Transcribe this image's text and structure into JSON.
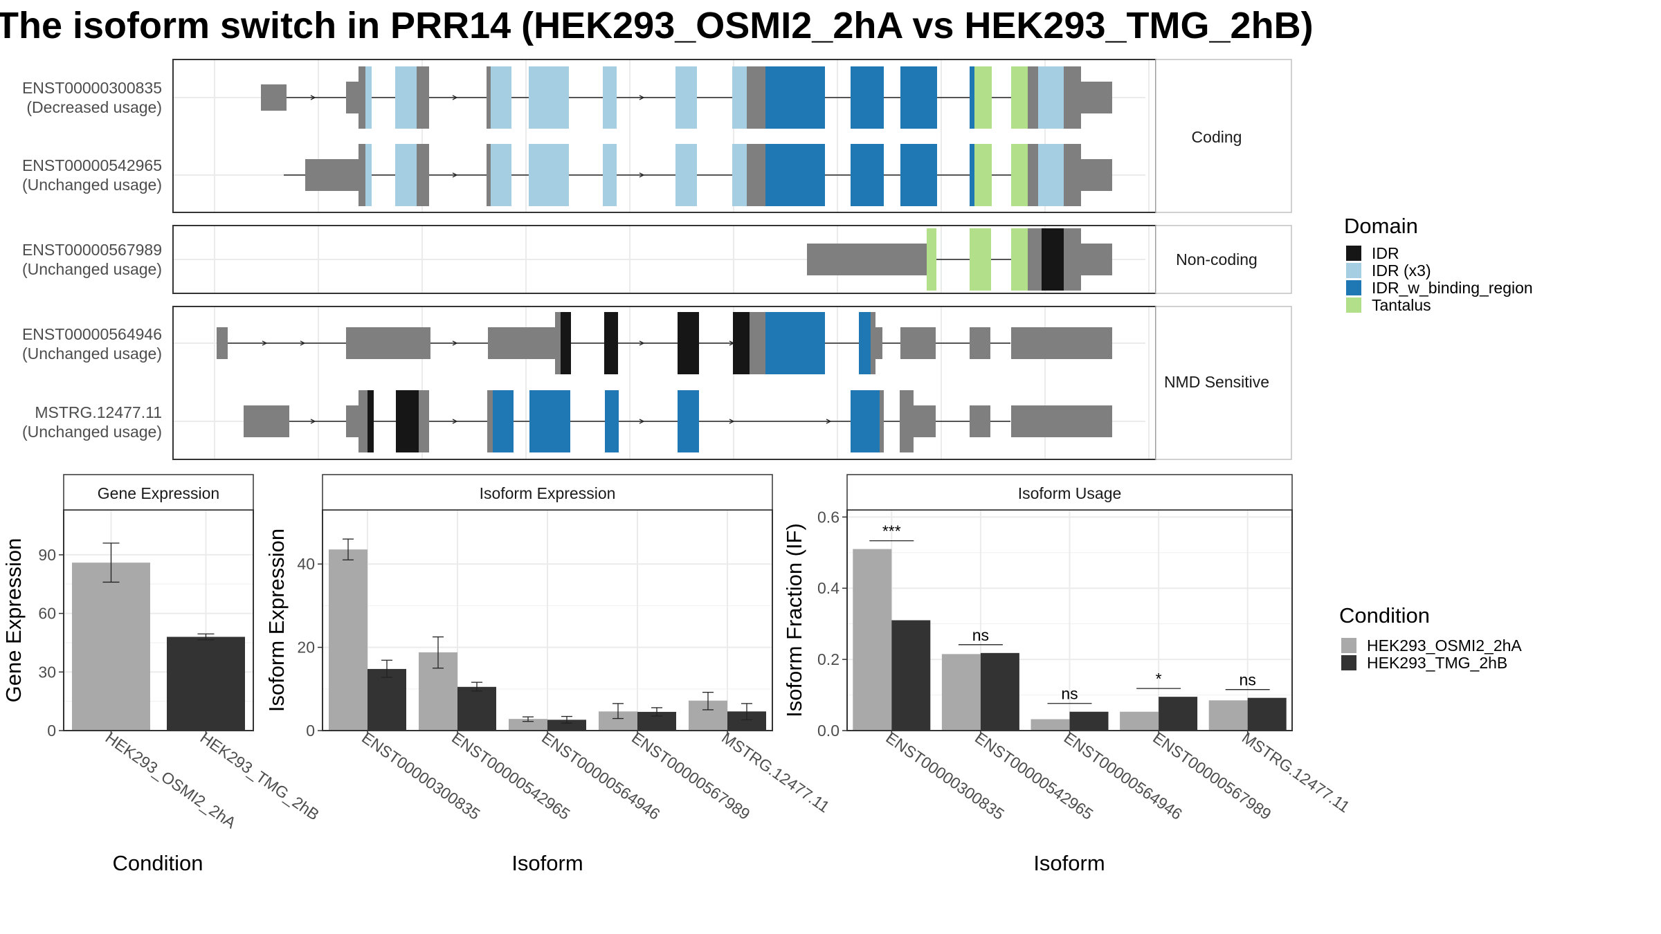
{
  "title": "The isoform switch in PRR14 (HEK293_OSMI2_2hA vs HEK293_TMG_2hB)",
  "colors": {
    "exon": "#7f7f7f",
    "IDR": "#161616",
    "IDR (x3)": "#a6cee3",
    "IDR_w_binding_region": "#1f78b4",
    "Tantalus": "#b2df8a",
    "cond1": "#a9a9a9",
    "cond2": "#333333"
  },
  "structure": {
    "groups": [
      {
        "label": "Coding",
        "transcripts": [
          {
            "id": "ENST00000300835",
            "usage": "(Decreased usage)"
          },
          {
            "id": "ENST00000542965",
            "usage": "(Unchanged usage)"
          }
        ]
      },
      {
        "label": "Non-coding",
        "transcripts": [
          {
            "id": "ENST00000567989",
            "usage": "(Unchanged usage)"
          }
        ]
      },
      {
        "label": "NMD Sensitive",
        "transcripts": [
          {
            "id": "ENST00000564946",
            "usage": "(Unchanged usage)"
          },
          {
            "id": "MSTRG.12477.11",
            "usage": "(Unchanged usage)"
          }
        ]
      }
    ]
  },
  "domain_legend": {
    "title": "Domain",
    "items": [
      "IDR",
      "IDR (x3)",
      "IDR_w_binding_region",
      "Tantalus"
    ]
  },
  "condition_legend": {
    "title": "Condition",
    "items": [
      "HEK293_OSMI2_2hA",
      "HEK293_TMG_2hB"
    ]
  },
  "chart_data": [
    {
      "type": "bar",
      "title": "Gene Expression",
      "xlabel": "Condition",
      "ylabel": "Gene Expression",
      "categories": [
        "HEK293_OSMI2_2hA",
        "HEK293_TMG_2hB"
      ],
      "values": [
        86,
        48
      ],
      "errors": [
        [
          76,
          96
        ],
        [
          46.5,
          49.5
        ]
      ],
      "yticks": [
        0,
        30,
        60,
        90
      ],
      "ylim": [
        0,
        113
      ]
    },
    {
      "type": "bar",
      "title": "Isoform Expression",
      "xlabel": "Isoform",
      "ylabel": "Isoform Expression",
      "categories": [
        "ENST00000300835",
        "ENST00000542965",
        "ENST00000564946",
        "ENST00000567989",
        "MSTRG.12477.11"
      ],
      "series": [
        {
          "name": "HEK293_OSMI2_2hA",
          "values": [
            43.5,
            18.8,
            2.8,
            4.6,
            7.2
          ],
          "errors": [
            [
              41,
              46
            ],
            [
              15,
              22.5
            ],
            [
              2.2,
              3.3
            ],
            [
              2.9,
              6.5
            ],
            [
              5,
              9.2
            ]
          ]
        },
        {
          "name": "HEK293_TMG_2hB",
          "values": [
            14.8,
            10.5,
            2.6,
            4.5,
            4.6
          ],
          "errors": [
            [
              12.8,
              16.9
            ],
            [
              9.5,
              11.6
            ],
            [
              1.8,
              3.4
            ],
            [
              3.5,
              5.5
            ],
            [
              2.6,
              6.5
            ]
          ]
        }
      ],
      "yticks": [
        0,
        20,
        40
      ],
      "ylim": [
        0,
        53
      ]
    },
    {
      "type": "bar",
      "title": "Isoform Usage",
      "xlabel": "Isoform",
      "ylabel": "Isoform Fraction (IF)",
      "categories": [
        "ENST00000300835",
        "ENST00000542965",
        "ENST00000564946",
        "ENST00000567989",
        "MSTRG.12477.11"
      ],
      "series": [
        {
          "name": "HEK293_OSMI2_2hA",
          "values": [
            0.51,
            0.215,
            0.032,
            0.053,
            0.085
          ]
        },
        {
          "name": "HEK293_TMG_2hB",
          "values": [
            0.31,
            0.218,
            0.053,
            0.095,
            0.092
          ]
        }
      ],
      "significance": [
        "***",
        "ns",
        "ns",
        "*",
        "ns"
      ],
      "yticks": [
        "0.0",
        "0.2",
        "0.4",
        "0.6"
      ],
      "ylim": [
        0,
        0.62
      ]
    }
  ]
}
